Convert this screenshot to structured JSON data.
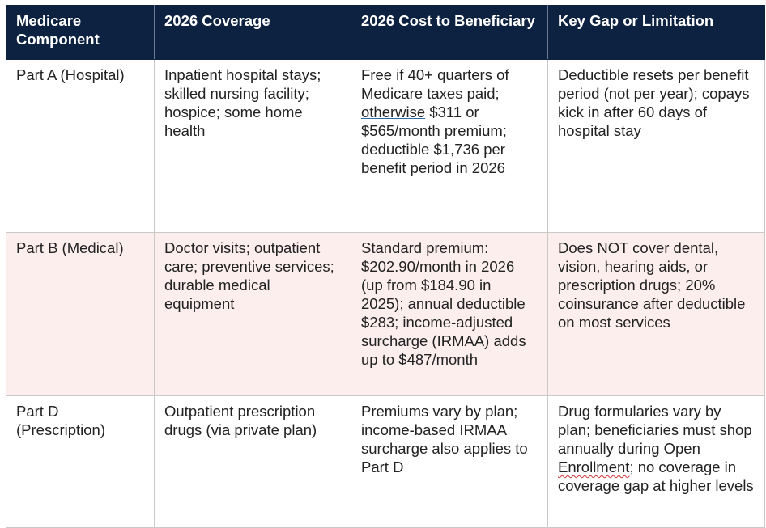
{
  "table": {
    "headers": [
      "Medicare Component",
      "2026 Coverage",
      "2026 Cost to Beneficiary",
      "Key Gap or Limitation"
    ],
    "rows": [
      {
        "component": "Part A (Hospital)",
        "coverage": "Inpatient hospital stays; skilled nursing facility; hospice; some home health",
        "cost": {
          "before": "Free if 40+ quarters of Medicare taxes paid; ",
          "marked": "otherwise",
          "after": " $311 or $565/month premium; deductible $1,736 per benefit period in 2026"
        },
        "gap": {
          "before": "Deductible resets per benefit period (not per year); copays kick in after 60 days of hospital stay",
          "marked": "",
          "after": ""
        }
      },
      {
        "component": "Part B (Medical)",
        "coverage": "Doctor visits; outpatient care; preventive services; durable medical equipment",
        "cost": {
          "before": "Standard premium: $202.90/month in 2026 (up from $184.90 in 2025); annual deductible $283; income-adjusted surcharge (IRMAA) adds up to $487/month",
          "marked": "",
          "after": ""
        },
        "gap": {
          "before": "Does NOT cover dental, vision, hearing aids, or prescription drugs; 20% coinsurance after deductible on most services",
          "marked": "",
          "after": ""
        }
      },
      {
        "component": "Part D (Prescription)",
        "coverage": "Outpatient prescription drugs (via private plan)",
        "cost": {
          "before": "Premiums vary by plan; income-based IRMAA surcharge also applies to Part D",
          "marked": "",
          "after": ""
        },
        "gap": {
          "before": "Drug formularies vary by plan; beneficiaries must shop annually during Open ",
          "marked": "Enrollment",
          "after": "; no coverage in coverage gap at higher levels"
        }
      }
    ]
  },
  "colors": {
    "header_background": "#0d2240",
    "header_text": "#ffffff",
    "shaded_row": "#fdeeee",
    "grid_line": "#c9c9c9"
  }
}
